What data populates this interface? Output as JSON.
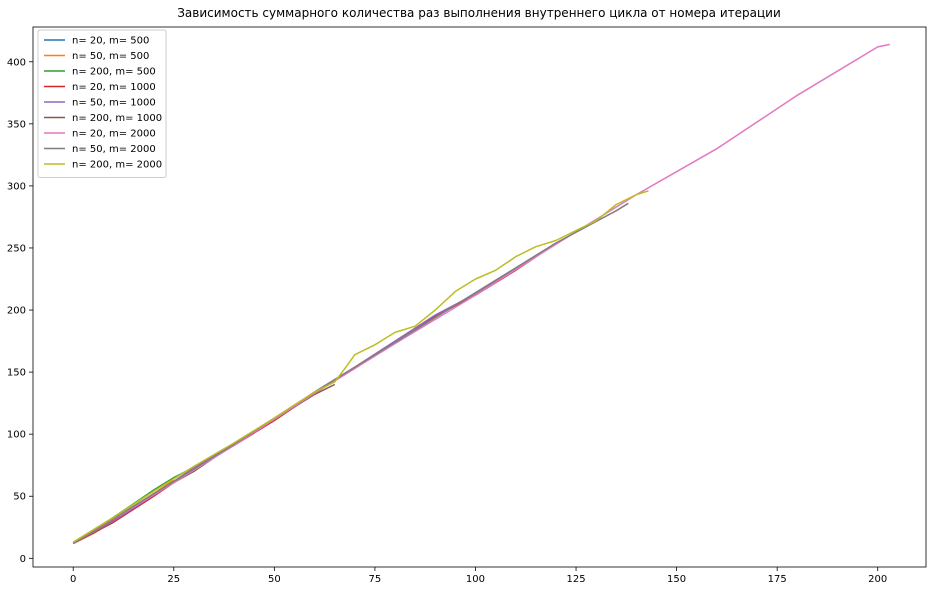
{
  "chart_data": {
    "type": "line",
    "title": "Зависимость суммарного количества раз выполнения внутреннего цикла от номера итерации",
    "xlabel": "",
    "ylabel": "",
    "xlim": [
      -10,
      212
    ],
    "ylim": [
      -7,
      428
    ],
    "xticks": [
      0,
      25,
      50,
      75,
      100,
      125,
      150,
      175,
      200
    ],
    "yticks": [
      0,
      50,
      100,
      150,
      200,
      250,
      300,
      350,
      400
    ],
    "grid": false,
    "legend_position": "top-left",
    "series": [
      {
        "name": "n= 20, m= 500",
        "color": "#1f77b4",
        "x": [
          0,
          5,
          10,
          15,
          20,
          23
        ],
        "y": [
          12,
          20,
          30,
          41,
          52,
          58
        ]
      },
      {
        "name": "n= 50, m= 500",
        "color": "#ff7f0e",
        "x": [
          0,
          5,
          10,
          15,
          20,
          25
        ],
        "y": [
          12,
          20,
          30,
          41,
          52,
          63
        ]
      },
      {
        "name": "n= 200, m= 500",
        "color": "#2ca02c",
        "x": [
          0,
          5,
          10,
          15,
          20,
          25,
          28
        ],
        "y": [
          12,
          22,
          33,
          44,
          55,
          65,
          70
        ]
      },
      {
        "name": "n= 20, m= 1000",
        "color": "#d62728",
        "x": [
          0,
          10,
          20,
          30,
          40,
          50,
          60,
          70,
          80,
          90,
          100,
          110,
          116
        ],
        "y": [
          12,
          29,
          50,
          72,
          91,
          111,
          133,
          153,
          174,
          195,
          212,
          232,
          245
        ]
      },
      {
        "name": "n= 50, m= 1000",
        "color": "#9467bd",
        "x": [
          0,
          10,
          20,
          30,
          40,
          50,
          60,
          70,
          80,
          90,
          100,
          110,
          115
        ],
        "y": [
          12,
          30,
          51,
          73,
          92,
          112,
          134,
          154,
          175,
          196,
          213,
          233,
          243
        ]
      },
      {
        "name": "n= 200, m= 1000",
        "color": "#8c564b",
        "x": [
          0,
          10,
          20,
          30,
          40,
          50,
          60,
          65
        ],
        "y": [
          12,
          31,
          52,
          70,
          92,
          112,
          132,
          140
        ]
      },
      {
        "name": "n= 20, m= 2000",
        "color": "#e377c2",
        "x": [
          0,
          20,
          40,
          60,
          80,
          100,
          120,
          140,
          160,
          180,
          200,
          203
        ],
        "y": [
          12,
          51,
          91,
          133,
          173,
          212,
          253,
          293,
          330,
          373,
          412,
          414
        ]
      },
      {
        "name": "n= 50, m= 2000",
        "color": "#7f7f7f",
        "x": [
          0,
          20,
          40,
          60,
          80,
          100,
          120,
          135,
          138
        ],
        "y": [
          12,
          52,
          92,
          134,
          174,
          214,
          254,
          280,
          286
        ]
      },
      {
        "name": "n= 200, m= 2000",
        "color": "#bcbd22",
        "x": [
          0,
          10,
          20,
          30,
          40,
          50,
          60,
          65,
          68,
          70,
          75,
          80,
          85,
          90,
          95,
          100,
          105,
          110,
          115,
          120,
          125,
          130,
          135,
          140,
          143
        ],
        "y": [
          13,
          33,
          54,
          74,
          93,
          113,
          134,
          142,
          155,
          164,
          172,
          182,
          187,
          200,
          215,
          225,
          232,
          243,
          251,
          256,
          264,
          272,
          285,
          293,
          296
        ]
      }
    ]
  }
}
